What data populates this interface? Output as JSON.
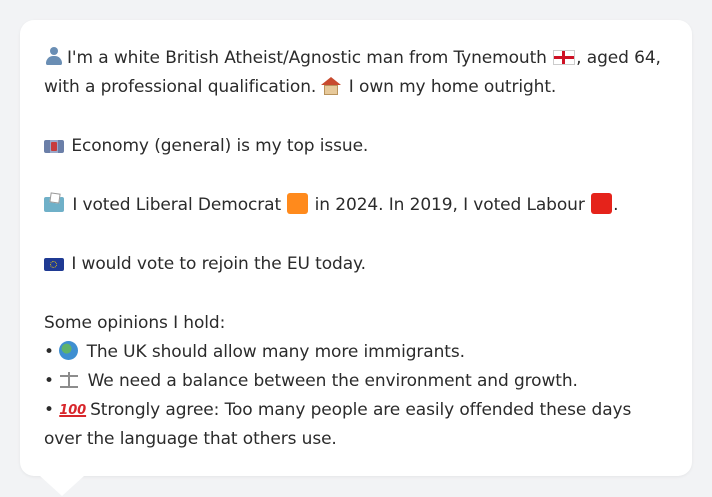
{
  "profile": {
    "line1_a": "I'm a white British Atheist/Agnostic man from Tynemouth",
    "line1_b": ", aged 64, with a professional qualification.",
    "line1_c": "I own my home outright."
  },
  "issue": {
    "text": "Economy (general) is my top issue."
  },
  "vote": {
    "text_a": "I voted Liberal Democrat",
    "text_b": "in 2024. In 2019, I voted Labour",
    "text_c": ".",
    "libdem_color": "#ff8a1c",
    "labour_color": "#e5231b"
  },
  "eu": {
    "text": "I would vote to rejoin the EU today."
  },
  "opinions": {
    "heading": "Some opinions I hold:",
    "bullet": "•",
    "items": [
      {
        "icon": "globe-icon",
        "text": "The UK should allow many more immigrants."
      },
      {
        "icon": "scale-icon",
        "text": "We need a balance between the environment and growth."
      },
      {
        "icon": "hundred-icon",
        "icon_text": "100",
        "text": "Strongly agree: Too many people are easily offended these days over the language that others use."
      }
    ]
  }
}
